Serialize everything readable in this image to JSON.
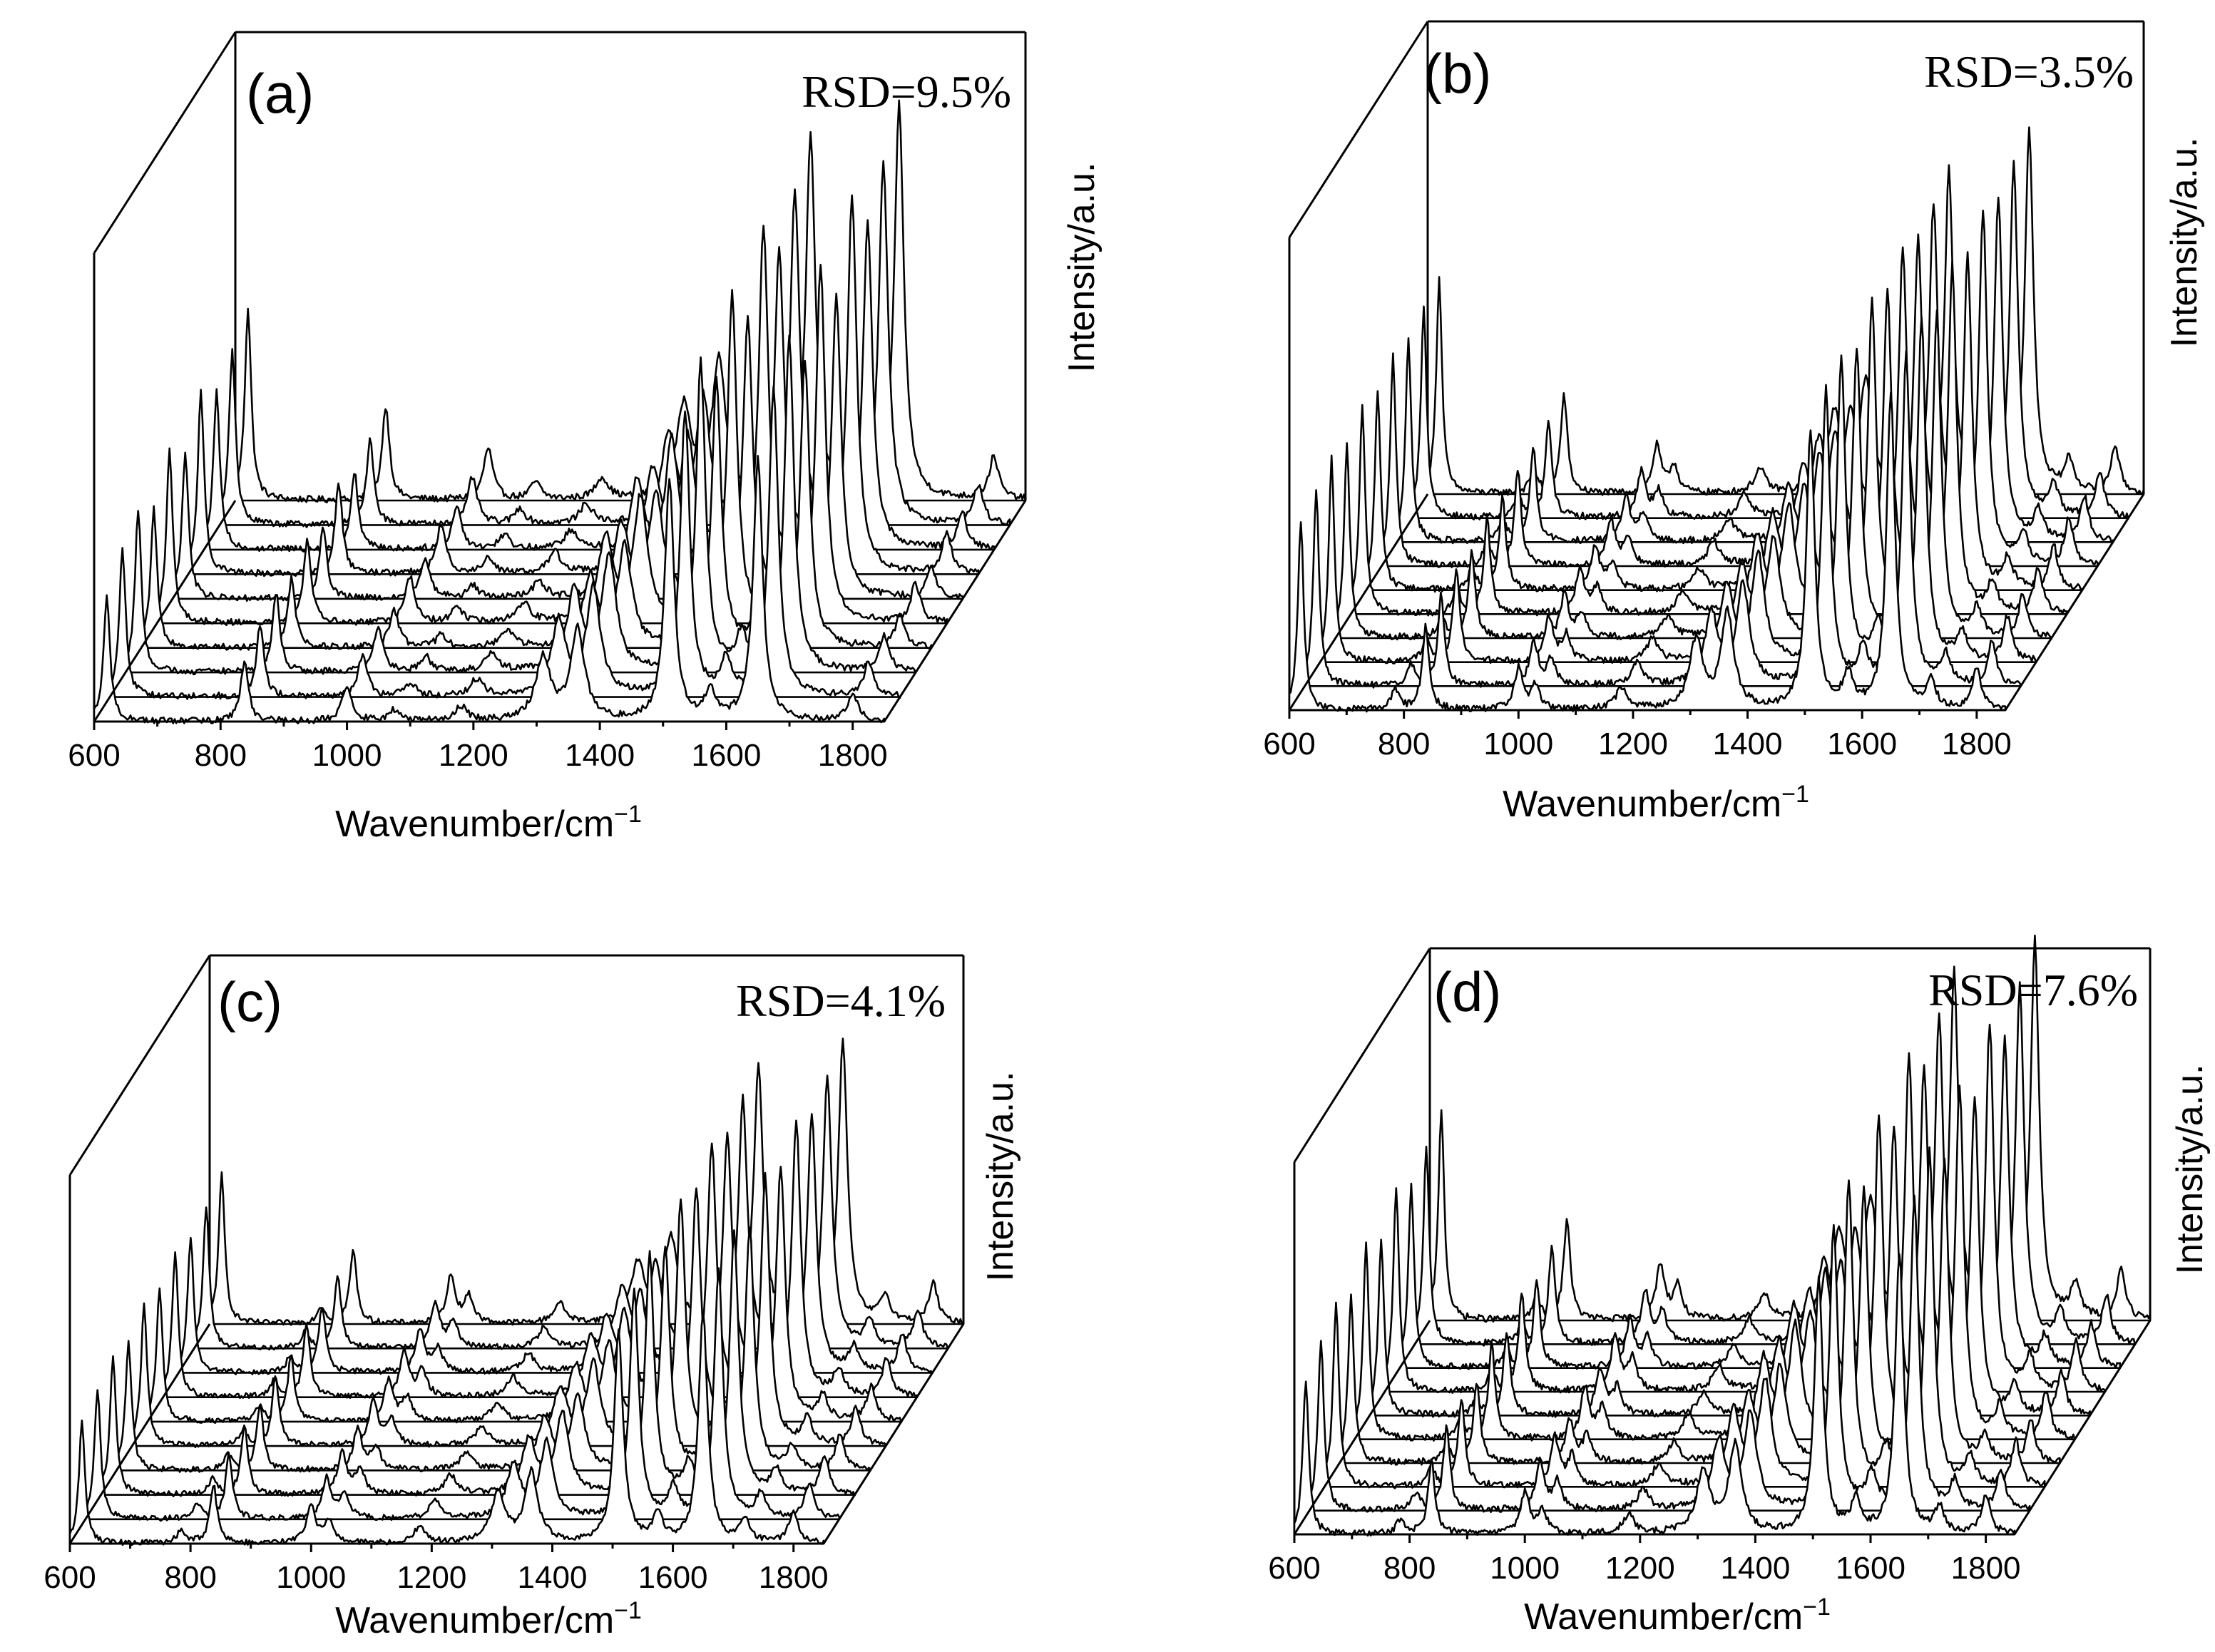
{
  "figure": {
    "description_color": "#000000"
  },
  "chart_data": [
    {
      "type": "line",
      "panel": "(a)",
      "rsd": "RSD=9.5%",
      "xlabel": "Wavenumber/cm",
      "xlabel_sup": "−1",
      "zlabel": "Intensity/a.u.",
      "xlim": [
        600,
        1850
      ],
      "x_ticks": [
        "600",
        "800",
        "1000",
        "1200",
        "1400",
        "1600",
        "1800"
      ],
      "x_tick_values": [
        600,
        800,
        1000,
        1200,
        1400,
        1600,
        1800
      ],
      "num_spectra": 10,
      "peaks": [
        {
          "center": 620,
          "height": 0.45,
          "width": 6
        },
        {
          "center": 838,
          "height": 0.22,
          "width": 7
        },
        {
          "center": 1000,
          "height": 0.12,
          "width": 9
        },
        {
          "center": 1075,
          "height": 0.04,
          "width": 10
        },
        {
          "center": 1180,
          "height": 0.05,
          "width": 12
        },
        {
          "center": 1310,
          "height": 0.22,
          "width": 14
        },
        {
          "center": 1365,
          "height": 0.32,
          "width": 13
        },
        {
          "center": 1510,
          "height": 0.85,
          "width": 9
        },
        {
          "center": 1575,
          "height": 0.1,
          "width": 10
        },
        {
          "center": 1650,
          "height": 0.92,
          "width": 9
        },
        {
          "center": 1800,
          "height": 0.1,
          "width": 9
        }
      ],
      "intensity_variation": [
        0.78,
        0.92,
        1.0,
        0.86,
        1.06,
        0.9,
        1.12,
        0.97,
        1.08,
        1.18
      ]
    },
    {
      "type": "line",
      "panel": "(b)",
      "rsd": "RSD=3.5%",
      "xlabel": "Wavenumber/cm",
      "xlabel_sup": "−1",
      "zlabel": "Intensity/a.u.",
      "xlim": [
        600,
        1850
      ],
      "x_ticks": [
        "600",
        "800",
        "1000",
        "1200",
        "1400",
        "1600",
        "1800"
      ],
      "x_tick_values": [
        600,
        800,
        1000,
        1200,
        1400,
        1600,
        1800
      ],
      "num_spectra": 10,
      "peaks": [
        {
          "center": 620,
          "height": 0.55,
          "width": 6
        },
        {
          "center": 785,
          "height": 0.06,
          "width": 8
        },
        {
          "center": 838,
          "height": 0.25,
          "width": 7
        },
        {
          "center": 1000,
          "height": 0.12,
          "width": 9
        },
        {
          "center": 1030,
          "height": 0.07,
          "width": 9
        },
        {
          "center": 1180,
          "height": 0.06,
          "width": 12
        },
        {
          "center": 1310,
          "height": 0.2,
          "width": 14
        },
        {
          "center": 1365,
          "height": 0.28,
          "width": 13
        },
        {
          "center": 1510,
          "height": 0.82,
          "width": 9
        },
        {
          "center": 1575,
          "height": 0.1,
          "width": 10
        },
        {
          "center": 1650,
          "height": 0.92,
          "width": 9
        },
        {
          "center": 1720,
          "height": 0.08,
          "width": 10
        },
        {
          "center": 1800,
          "height": 0.12,
          "width": 9
        }
      ],
      "intensity_variation": [
        0.92,
        0.97,
        1.0,
        0.95,
        1.02,
        0.98,
        1.04,
        1.0,
        1.03,
        1.06
      ]
    },
    {
      "type": "line",
      "panel": "(c)",
      "rsd": "RSD=4.1%",
      "xlabel": "Wavenumber/cm",
      "xlabel_sup": "−1",
      "zlabel": "Intensity/a.u.",
      "xlim": [
        600,
        1850
      ],
      "x_ticks": [
        "600",
        "800",
        "1000",
        "1200",
        "1400",
        "1600",
        "1800"
      ],
      "x_tick_values": [
        600,
        800,
        1000,
        1200,
        1400,
        1600,
        1800
      ],
      "num_spectra": 10,
      "peaks": [
        {
          "center": 620,
          "height": 0.45,
          "width": 6
        },
        {
          "center": 785,
          "height": 0.05,
          "width": 8
        },
        {
          "center": 838,
          "height": 0.22,
          "width": 7
        },
        {
          "center": 1000,
          "height": 0.14,
          "width": 9
        },
        {
          "center": 1030,
          "height": 0.08,
          "width": 9
        },
        {
          "center": 1180,
          "height": 0.06,
          "width": 12
        },
        {
          "center": 1310,
          "height": 0.18,
          "width": 14
        },
        {
          "center": 1365,
          "height": 0.26,
          "width": 13
        },
        {
          "center": 1510,
          "height": 0.78,
          "width": 9
        },
        {
          "center": 1575,
          "height": 0.1,
          "width": 10
        },
        {
          "center": 1650,
          "height": 0.85,
          "width": 9
        },
        {
          "center": 1720,
          "height": 0.08,
          "width": 10
        },
        {
          "center": 1800,
          "height": 0.12,
          "width": 9
        }
      ],
      "intensity_variation": [
        0.88,
        0.95,
        1.0,
        0.93,
        1.03,
        0.97,
        1.05,
        0.99,
        1.04,
        1.08
      ]
    },
    {
      "type": "line",
      "panel": "(d)",
      "rsd": "RSD=7.6%",
      "xlabel": "Wavenumber/cm",
      "xlabel_sup": "−1",
      "zlabel": "Intensity/a.u.",
      "xlim": [
        600,
        1850
      ],
      "x_ticks": [
        "600",
        "800",
        "1000",
        "1200",
        "1400",
        "1600",
        "1800"
      ],
      "x_tick_values": [
        600,
        800,
        1000,
        1200,
        1400,
        1600,
        1800
      ],
      "num_spectra": 10,
      "peaks": [
        {
          "center": 620,
          "height": 0.5,
          "width": 6
        },
        {
          "center": 785,
          "height": 0.05,
          "width": 8
        },
        {
          "center": 838,
          "height": 0.24,
          "width": 7
        },
        {
          "center": 1000,
          "height": 0.13,
          "width": 9
        },
        {
          "center": 1030,
          "height": 0.08,
          "width": 9
        },
        {
          "center": 1180,
          "height": 0.06,
          "width": 12
        },
        {
          "center": 1310,
          "height": 0.2,
          "width": 14
        },
        {
          "center": 1365,
          "height": 0.28,
          "width": 13
        },
        {
          "center": 1510,
          "height": 0.82,
          "width": 9
        },
        {
          "center": 1575,
          "height": 0.1,
          "width": 10
        },
        {
          "center": 1650,
          "height": 0.9,
          "width": 9
        },
        {
          "center": 1720,
          "height": 0.08,
          "width": 10
        },
        {
          "center": 1800,
          "height": 0.12,
          "width": 9
        }
      ],
      "intensity_variation": [
        0.84,
        0.93,
        1.0,
        0.9,
        1.06,
        0.95,
        1.1,
        0.98,
        1.07,
        1.14
      ]
    }
  ]
}
